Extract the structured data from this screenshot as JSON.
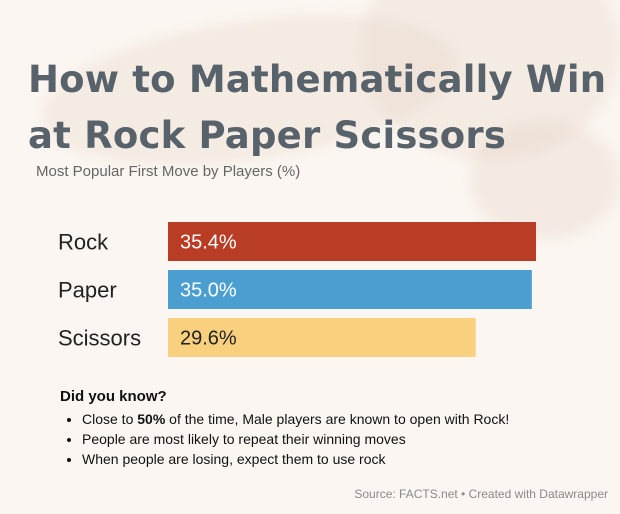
{
  "title_line1": "How to Mathematically Win",
  "title_line2": "at Rock Paper Scissors",
  "subtitle": "Most Popular First Move by Players (%)",
  "chart_data": {
    "type": "bar",
    "orientation": "horizontal",
    "categories": [
      "Rock",
      "Paper",
      "Scissors"
    ],
    "values": [
      35.4,
      35.0,
      29.6
    ],
    "value_labels": [
      "35.4%",
      "35.0%",
      "29.6%"
    ],
    "colors": [
      "#b93c24",
      "#4a9fd0",
      "#f8d07e"
    ],
    "xlim": [
      0,
      35.4
    ],
    "grid": false,
    "title": "Most Popular First Move by Players (%)"
  },
  "facts": {
    "heading": "Did you know?",
    "item1_prefix": "Close to ",
    "item1_bold": "50%",
    "item1_suffix": " of the time, Male players are known to open with Rock!",
    "item2": "People are most likely to repeat their winning moves",
    "item3": "When people are losing, expect them to use rock"
  },
  "source": "Source: FACTS.net • Created with Datawrapper"
}
